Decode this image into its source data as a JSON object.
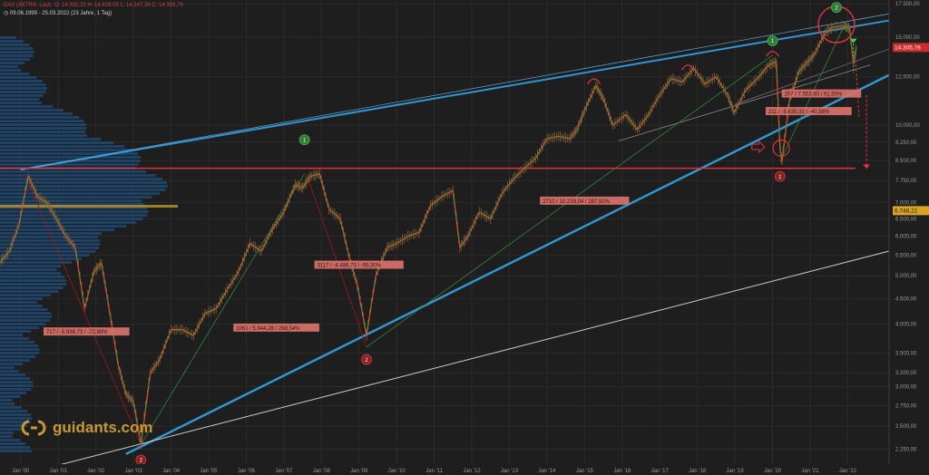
{
  "header": {
    "instrument": "DAX (XETRA, Last)",
    "ohlc": "O: 14.332,25  H: 14.429,03  L: 14.247,36  C: 14.305,76",
    "range": "09.06.1999 - 25.03.2022",
    "span": "(23 Jahre, 1 Tag)"
  },
  "logo": {
    "text": "guidants.com"
  },
  "chart_data": {
    "type": "line",
    "scale": "log",
    "ylim": [
      2100,
      17800
    ],
    "xlim": [
      1999.45,
      2023.1
    ],
    "y_ticks": [
      {
        "v": 17500,
        "label": "17.500,00"
      },
      {
        "v": 15000,
        "label": "15.000,00"
      },
      {
        "v": 12500,
        "label": "12.500,00"
      },
      {
        "v": 10000,
        "label": "10.000,00"
      },
      {
        "v": 9250,
        "label": "9.250,00"
      },
      {
        "v": 8500,
        "label": "8.500,00"
      },
      {
        "v": 7750,
        "label": "7.750,00"
      },
      {
        "v": 7000,
        "label": "7.000,00"
      },
      {
        "v": 6500,
        "label": "6.500,00"
      },
      {
        "v": 6000,
        "label": "6.000,00"
      },
      {
        "v": 5500,
        "label": "5.500,00"
      },
      {
        "v": 5000,
        "label": "5.000,00"
      },
      {
        "v": 4500,
        "label": "4.500,00"
      },
      {
        "v": 4000,
        "label": "4.000,00"
      },
      {
        "v": 3500,
        "label": "3.500,00"
      },
      {
        "v": 3200,
        "label": "3.200,00"
      },
      {
        "v": 3000,
        "label": "3.000,00"
      },
      {
        "v": 2750,
        "label": "2.750,00"
      },
      {
        "v": 2500,
        "label": "2.500,00"
      },
      {
        "v": 2250,
        "label": "2.250,00"
      }
    ],
    "x_ticks": [
      {
        "t": 2000.0,
        "label": "Jan '00"
      },
      {
        "t": 2001.0,
        "label": "Jan '01"
      },
      {
        "t": 2002.0,
        "label": "Jan '02"
      },
      {
        "t": 2003.0,
        "label": "Jan '03"
      },
      {
        "t": 2004.0,
        "label": "Jan '04"
      },
      {
        "t": 2005.0,
        "label": "Jan '05"
      },
      {
        "t": 2006.0,
        "label": "Jan '06"
      },
      {
        "t": 2007.0,
        "label": "Jan '07"
      },
      {
        "t": 2008.0,
        "label": "Jan '08"
      },
      {
        "t": 2009.0,
        "label": "Jan '09"
      },
      {
        "t": 2010.0,
        "label": "Jan '10"
      },
      {
        "t": 2011.0,
        "label": "Jan '11"
      },
      {
        "t": 2012.0,
        "label": "Jan '12"
      },
      {
        "t": 2013.0,
        "label": "Jan '13"
      },
      {
        "t": 2014.0,
        "label": "Jan '14"
      },
      {
        "t": 2015.0,
        "label": "Jan '15"
      },
      {
        "t": 2016.0,
        "label": "Jan '16"
      },
      {
        "t": 2017.0,
        "label": "Jan '17"
      },
      {
        "t": 2018.0,
        "label": "Jan '18"
      },
      {
        "t": 2019.0,
        "label": "Jan '19"
      },
      {
        "t": 2020.0,
        "label": "Jan '20"
      },
      {
        "t": 2021.0,
        "label": "Jan '21"
      },
      {
        "t": 2022.0,
        "label": "Jan '22"
      }
    ],
    "series": [
      {
        "x": [
          1999.44,
          1999.7,
          1999.95,
          2000.2,
          2000.45,
          2000.7,
          2000.95,
          2001.2,
          2001.45,
          2001.7,
          2001.95,
          2002.15,
          2002.35,
          2002.6,
          2002.8,
          2003.0,
          2003.2,
          2003.45,
          2003.7,
          2004.0,
          2004.3,
          2004.6,
          2004.9,
          2005.2,
          2005.5,
          2005.8,
          2006.1,
          2006.4,
          2006.7,
          2007.0,
          2007.3,
          2007.5,
          2007.7,
          2007.95,
          2008.2,
          2008.5,
          2008.75,
          2008.95,
          2009.2,
          2009.45,
          2009.75,
          2010.0,
          2010.3,
          2010.6,
          2010.9,
          2011.2,
          2011.5,
          2011.68,
          2011.9,
          2012.2,
          2012.5,
          2012.8,
          2013.1,
          2013.4,
          2013.7,
          2014.0,
          2014.3,
          2014.6,
          2014.8,
          2015.0,
          2015.3,
          2015.5,
          2015.75,
          2016.1,
          2016.4,
          2016.7,
          2017.0,
          2017.3,
          2017.6,
          2017.9,
          2018.2,
          2018.5,
          2018.8,
          2018.98,
          2019.3,
          2019.6,
          2019.9,
          2020.1,
          2020.2,
          2020.25,
          2020.45,
          2020.7,
          2020.9,
          2021.1,
          2021.4,
          2021.6,
          2021.9,
          2022.05,
          2022.15,
          2022.23
        ],
        "y": [
          5300,
          5600,
          6300,
          7900,
          7200,
          7000,
          6500,
          6000,
          5700,
          4300,
          5100,
          5300,
          4300,
          3300,
          2900,
          2800,
          2300,
          3200,
          3400,
          3900,
          3900,
          3800,
          4200,
          4300,
          4700,
          5100,
          5800,
          5600,
          6200,
          6700,
          7600,
          7500,
          7900,
          8000,
          6800,
          6500,
          5400,
          4800,
          3800,
          5000,
          5700,
          5800,
          6000,
          6100,
          6900,
          7200,
          7400,
          5700,
          6000,
          6700,
          6500,
          7300,
          7800,
          8200,
          8600,
          9400,
          9500,
          9400,
          9800,
          10700,
          12000,
          11300,
          10000,
          10500,
          9800,
          10500,
          11500,
          12400,
          12200,
          13000,
          12100,
          12500,
          11500,
          10600,
          11800,
          12400,
          13200,
          13400,
          9000,
          8450,
          11200,
          12800,
          13300,
          13800,
          15300,
          15700,
          15800,
          15600,
          13300,
          14306
        ],
        "color": "#d06030"
      }
    ],
    "levels": [
      {
        "label": "14.305,76",
        "v": 14305.76,
        "color": "#cc2b2b"
      },
      {
        "label": "6.748,22",
        "v": 6748.22,
        "color": "#d9a521"
      }
    ],
    "annotations": [
      {
        "text": "717 / -5.938,73 / -72,80%",
        "t": 2001.75,
        "v": 3860
      },
      {
        "text": "1061 / 5.944,28 / 268,54%",
        "t": 2006.8,
        "v": 3930
      },
      {
        "text": "3117 / -4.486,73 / -55,30%",
        "t": 2009.0,
        "v": 5250
      },
      {
        "text": "2710 / 10.239,04 / 287,92%",
        "t": 2015.0,
        "v": 7050
      },
      {
        "text": "207 / 7.553,60 / 61,55%",
        "t": 2021.3,
        "v": 11550
      },
      {
        "text": "211 / -5.635,32 / -40,58%",
        "t": 2020.96,
        "v": 10650
      }
    ],
    "markers": [
      {
        "n": "1",
        "kind": "high",
        "t": 2007.55,
        "v": 9350
      },
      {
        "n": "1",
        "kind": "high",
        "t": 2020.0,
        "v": 14750
      },
      {
        "n": "2",
        "kind": "high",
        "t": 2021.7,
        "v": 17200
      },
      {
        "n": "2",
        "kind": "low",
        "t": 2003.2,
        "v": 2140
      },
      {
        "n": "2",
        "kind": "low",
        "t": 2009.2,
        "v": 3400
      },
      {
        "n": "1",
        "kind": "low",
        "t": 2020.2,
        "v": 7900
      }
    ]
  }
}
